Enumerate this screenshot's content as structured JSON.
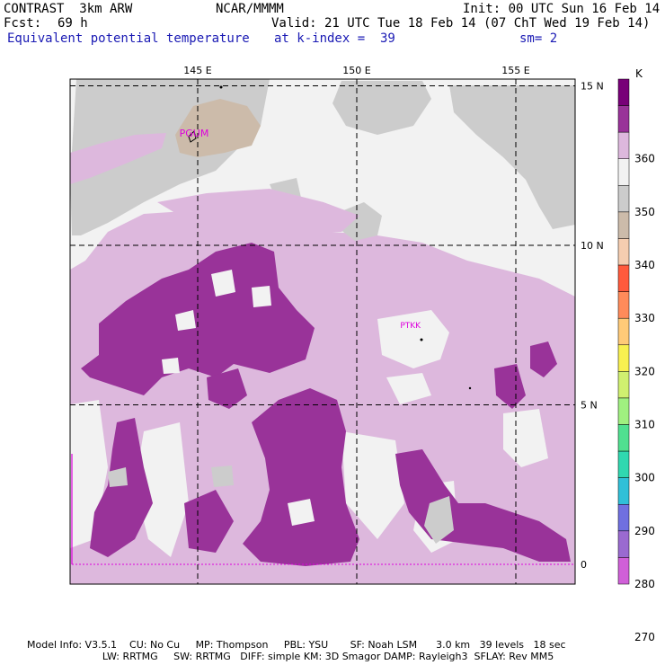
{
  "header": {
    "model": "CONTRAST  3km ARW",
    "org": "NCAR/MMMM",
    "init": "Init: 00 UTC Sun 16 Feb 14",
    "fcst_label": "Fcst:",
    "fcst_value": "69 h",
    "valid": "Valid: 21 UTC Tue 18 Feb 14 (07 ChT Wed 19 Feb 14)",
    "field": "Equivalent potential temperature",
    "level": "at k-index =  39",
    "smoothing": "sm= 2"
  },
  "map": {
    "lon_labels": [
      "145 E",
      "150 E",
      "155 E"
    ],
    "lat_labels": [
      "15 N",
      "10 N",
      "5 N",
      "0"
    ],
    "lon_values": [
      145,
      150,
      155
    ],
    "lat_values": [
      15,
      10,
      5,
      0
    ],
    "stations": [
      {
        "id": "PGUM",
        "lon": 145.0,
        "lat": 13.5
      },
      {
        "id": "PTKK",
        "lon": 151.8,
        "lat": 7.5
      }
    ]
  },
  "colorbar": {
    "unit": "K",
    "labels": [
      "360",
      "350",
      "340",
      "330",
      "320",
      "310",
      "300",
      "290",
      "280",
      "270"
    ],
    "colors": [
      "#780078",
      "#993399",
      "#ddb8dd",
      "#f2f2f2",
      "#cccccc",
      "#ccbbaa",
      "#f5cdb0",
      "#ff5a3c",
      "#ff8b5a",
      "#ffca78",
      "#f8f050",
      "#d0f070",
      "#a0f080",
      "#50e090",
      "#30d8b0",
      "#30c0d8",
      "#7070e0",
      "#9a6ad0",
      "#d060d8"
    ]
  },
  "footer": {
    "line1": "Model Info: V3.5.1    CU: No Cu     MP: Thompson     PBL: YSU       SF: Noah LSM      3.0 km   39 levels   18 sec",
    "line2": "                        LW: RRTMG     SW: RRTMG   DIFF: simple KM: 3D Smagor DAMP: Rayleigh3  SFLAY: Rev MM5"
  }
}
